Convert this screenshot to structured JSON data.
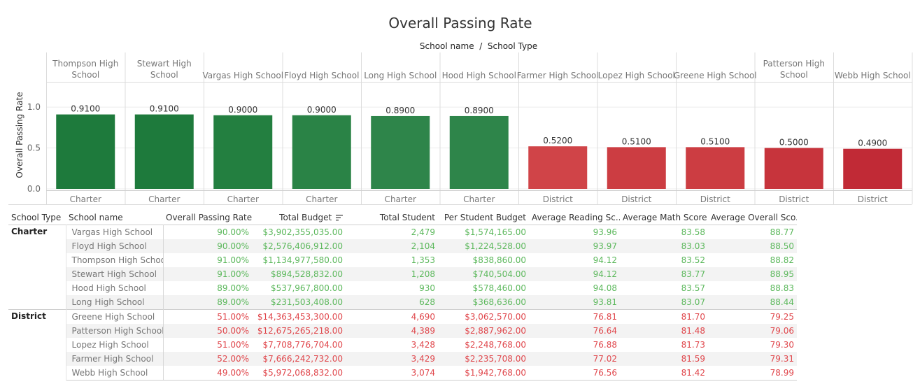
{
  "chart_data": {
    "type": "bar",
    "title": "Overall Passing Rate",
    "header": "School name  /  School Type",
    "ylabel": "Overall Passing Rate",
    "ylim": [
      0,
      1.3
    ],
    "yticks": [
      "0.0",
      "0.5",
      "1.0"
    ],
    "ytick_values": [
      0,
      0.5,
      1.0
    ],
    "categories": [
      "Thompson High School",
      "Stewart High School",
      "Vargas High School",
      "Floyd High School",
      "Long High School",
      "Hood High School",
      "Farmer High School",
      "Lopez High School",
      "Greene High School",
      "Patterson High School",
      "Webb High School"
    ],
    "header_lines": [
      [
        "Thompson High",
        "School"
      ],
      [
        "Stewart High",
        "School"
      ],
      [
        "Vargas High School"
      ],
      [
        "Floyd High School"
      ],
      [
        "Long High School"
      ],
      [
        "Hood High School"
      ],
      [
        "Farmer High School"
      ],
      [
        "Lopez High School"
      ],
      [
        "Greene High School"
      ],
      [
        "Patterson High",
        "School"
      ],
      [
        "Webb High School"
      ]
    ],
    "school_types": [
      "Charter",
      "Charter",
      "Charter",
      "Charter",
      "Charter",
      "Charter",
      "District",
      "District",
      "District",
      "District",
      "District"
    ],
    "values": [
      0.91,
      0.91,
      0.9,
      0.9,
      0.89,
      0.89,
      0.52,
      0.51,
      0.51,
      0.5,
      0.49
    ],
    "value_labels": [
      "0.9100",
      "0.9100",
      "0.9000",
      "0.9000",
      "0.8900",
      "0.8900",
      "0.5200",
      "0.5100",
      "0.5100",
      "0.5000",
      "0.4900"
    ],
    "colors": [
      "#1e7a3c",
      "#1e7a3c",
      "#237f40",
      "#2a8346",
      "#2e854a",
      "#2e854a",
      "#d04448",
      "#cc3d42",
      "#cc3d42",
      "#c7343c",
      "#c12a36"
    ]
  },
  "table": {
    "headers": {
      "school_type": "School Type",
      "school_name": "School name",
      "passing": "Overall Passing Rate",
      "budget": "Total Budget",
      "students": "Total Student",
      "per_student": "Per Student Budget",
      "reading": "Average Reading Sc..",
      "math": "Average Math Score",
      "overall": "Average Overall Sco.."
    },
    "groups": [
      {
        "type": "Charter",
        "rows": [
          {
            "name": "Vargas High School",
            "passing": "90.00%",
            "budget": "$3,902,355,035.00",
            "students": "2,479",
            "per_student": "$1,574,165.00",
            "reading": "93.96",
            "math": "83.58",
            "overall": "88.77"
          },
          {
            "name": "Floyd High School",
            "passing": "90.00%",
            "budget": "$2,576,406,912.00",
            "students": "2,104",
            "per_student": "$1,224,528.00",
            "reading": "93.97",
            "math": "83.03",
            "overall": "88.50"
          },
          {
            "name": "Thompson High School",
            "passing": "91.00%",
            "budget": "$1,134,977,580.00",
            "students": "1,353",
            "per_student": "$838,860.00",
            "reading": "94.12",
            "math": "83.52",
            "overall": "88.82"
          },
          {
            "name": "Stewart High School",
            "passing": "91.00%",
            "budget": "$894,528,832.00",
            "students": "1,208",
            "per_student": "$740,504.00",
            "reading": "94.12",
            "math": "83.77",
            "overall": "88.95"
          },
          {
            "name": "Hood High School",
            "passing": "89.00%",
            "budget": "$537,967,800.00",
            "students": "930",
            "per_student": "$578,460.00",
            "reading": "94.08",
            "math": "83.57",
            "overall": "88.83"
          },
          {
            "name": "Long High School",
            "passing": "89.00%",
            "budget": "$231,503,408.00",
            "students": "628",
            "per_student": "$368,636.00",
            "reading": "93.81",
            "math": "83.07",
            "overall": "88.44"
          }
        ]
      },
      {
        "type": "District",
        "rows": [
          {
            "name": "Greene High School",
            "passing": "51.00%",
            "budget": "$14,363,453,300.00",
            "students": "4,690",
            "per_student": "$3,062,570.00",
            "reading": "76.81",
            "math": "81.70",
            "overall": "79.25"
          },
          {
            "name": "Patterson High School",
            "passing": "50.00%",
            "budget": "$12,675,265,218.00",
            "students": "4,389",
            "per_student": "$2,887,962.00",
            "reading": "76.64",
            "math": "81.48",
            "overall": "79.06"
          },
          {
            "name": "Lopez High School",
            "passing": "51.00%",
            "budget": "$7,708,776,704.00",
            "students": "3,428",
            "per_student": "$2,248,768.00",
            "reading": "76.88",
            "math": "81.73",
            "overall": "79.30"
          },
          {
            "name": "Farmer High School",
            "passing": "52.00%",
            "budget": "$7,666,242,732.00",
            "students": "3,429",
            "per_student": "$2,235,708.00",
            "reading": "77.02",
            "math": "81.59",
            "overall": "79.31"
          },
          {
            "name": "Webb High School",
            "passing": "49.00%",
            "budget": "$5,972,068,832.00",
            "students": "3,074",
            "per_student": "$1,942,768.00",
            "reading": "76.56",
            "math": "81.42",
            "overall": "78.99"
          }
        ]
      }
    ]
  }
}
